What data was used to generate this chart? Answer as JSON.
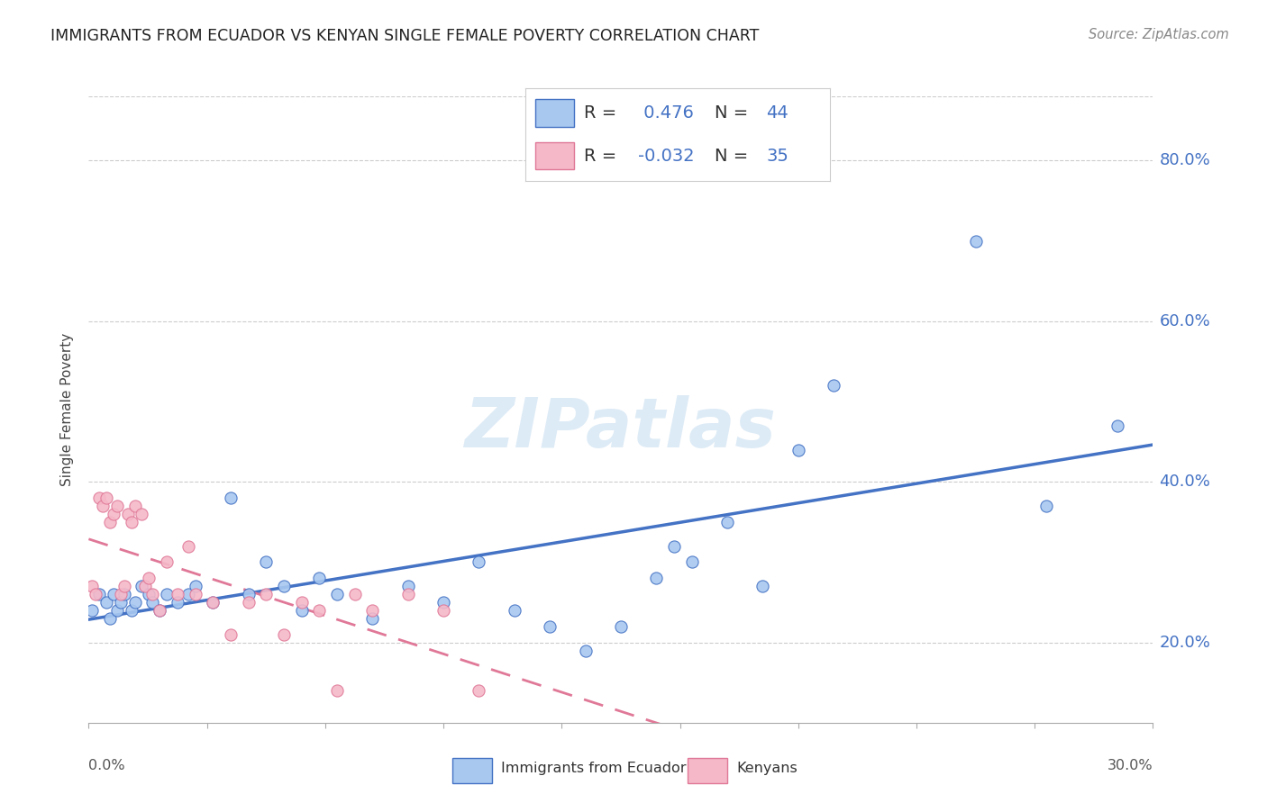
{
  "title": "IMMIGRANTS FROM ECUADOR VS KENYAN SINGLE FEMALE POVERTY CORRELATION CHART",
  "source": "Source: ZipAtlas.com",
  "ylabel": "Single Female Poverty",
  "ytick_values": [
    0.2,
    0.4,
    0.6,
    0.8
  ],
  "xlim": [
    0.0,
    0.3
  ],
  "ylim": [
    0.1,
    0.88
  ],
  "ecuador_R": 0.476,
  "ecuador_N": 44,
  "kenya_R": -0.032,
  "kenya_N": 35,
  "ecuador_color": "#A8C8F0",
  "kenya_color": "#F5B8C8",
  "ecuador_line_color": "#4472C4",
  "kenya_line_color": "#E07898",
  "legend_label_1": "Immigrants from Ecuador",
  "legend_label_2": "Kenyans",
  "watermark": "ZIPatlas",
  "ecuador_x": [
    0.001,
    0.003,
    0.005,
    0.006,
    0.007,
    0.008,
    0.009,
    0.01,
    0.012,
    0.013,
    0.015,
    0.017,
    0.018,
    0.02,
    0.022,
    0.025,
    0.028,
    0.03,
    0.035,
    0.04,
    0.045,
    0.05,
    0.055,
    0.06,
    0.065,
    0.07,
    0.08,
    0.09,
    0.1,
    0.11,
    0.12,
    0.13,
    0.14,
    0.15,
    0.16,
    0.165,
    0.17,
    0.18,
    0.19,
    0.2,
    0.21,
    0.25,
    0.27,
    0.29
  ],
  "ecuador_y": [
    0.24,
    0.26,
    0.25,
    0.23,
    0.26,
    0.24,
    0.25,
    0.26,
    0.24,
    0.25,
    0.27,
    0.26,
    0.25,
    0.24,
    0.26,
    0.25,
    0.26,
    0.27,
    0.25,
    0.38,
    0.26,
    0.3,
    0.27,
    0.24,
    0.28,
    0.26,
    0.23,
    0.27,
    0.25,
    0.3,
    0.24,
    0.22,
    0.19,
    0.22,
    0.28,
    0.32,
    0.3,
    0.35,
    0.27,
    0.44,
    0.52,
    0.7,
    0.37,
    0.47
  ],
  "kenya_x": [
    0.001,
    0.002,
    0.003,
    0.004,
    0.005,
    0.006,
    0.007,
    0.008,
    0.009,
    0.01,
    0.011,
    0.012,
    0.013,
    0.015,
    0.016,
    0.017,
    0.018,
    0.02,
    0.022,
    0.025,
    0.028,
    0.03,
    0.035,
    0.04,
    0.045,
    0.05,
    0.055,
    0.06,
    0.065,
    0.07,
    0.075,
    0.08,
    0.09,
    0.1,
    0.11
  ],
  "kenya_y": [
    0.27,
    0.26,
    0.38,
    0.37,
    0.38,
    0.35,
    0.36,
    0.37,
    0.26,
    0.27,
    0.36,
    0.35,
    0.37,
    0.36,
    0.27,
    0.28,
    0.26,
    0.24,
    0.3,
    0.26,
    0.32,
    0.26,
    0.25,
    0.21,
    0.25,
    0.26,
    0.21,
    0.25,
    0.24,
    0.14,
    0.26,
    0.24,
    0.26,
    0.24,
    0.14
  ]
}
